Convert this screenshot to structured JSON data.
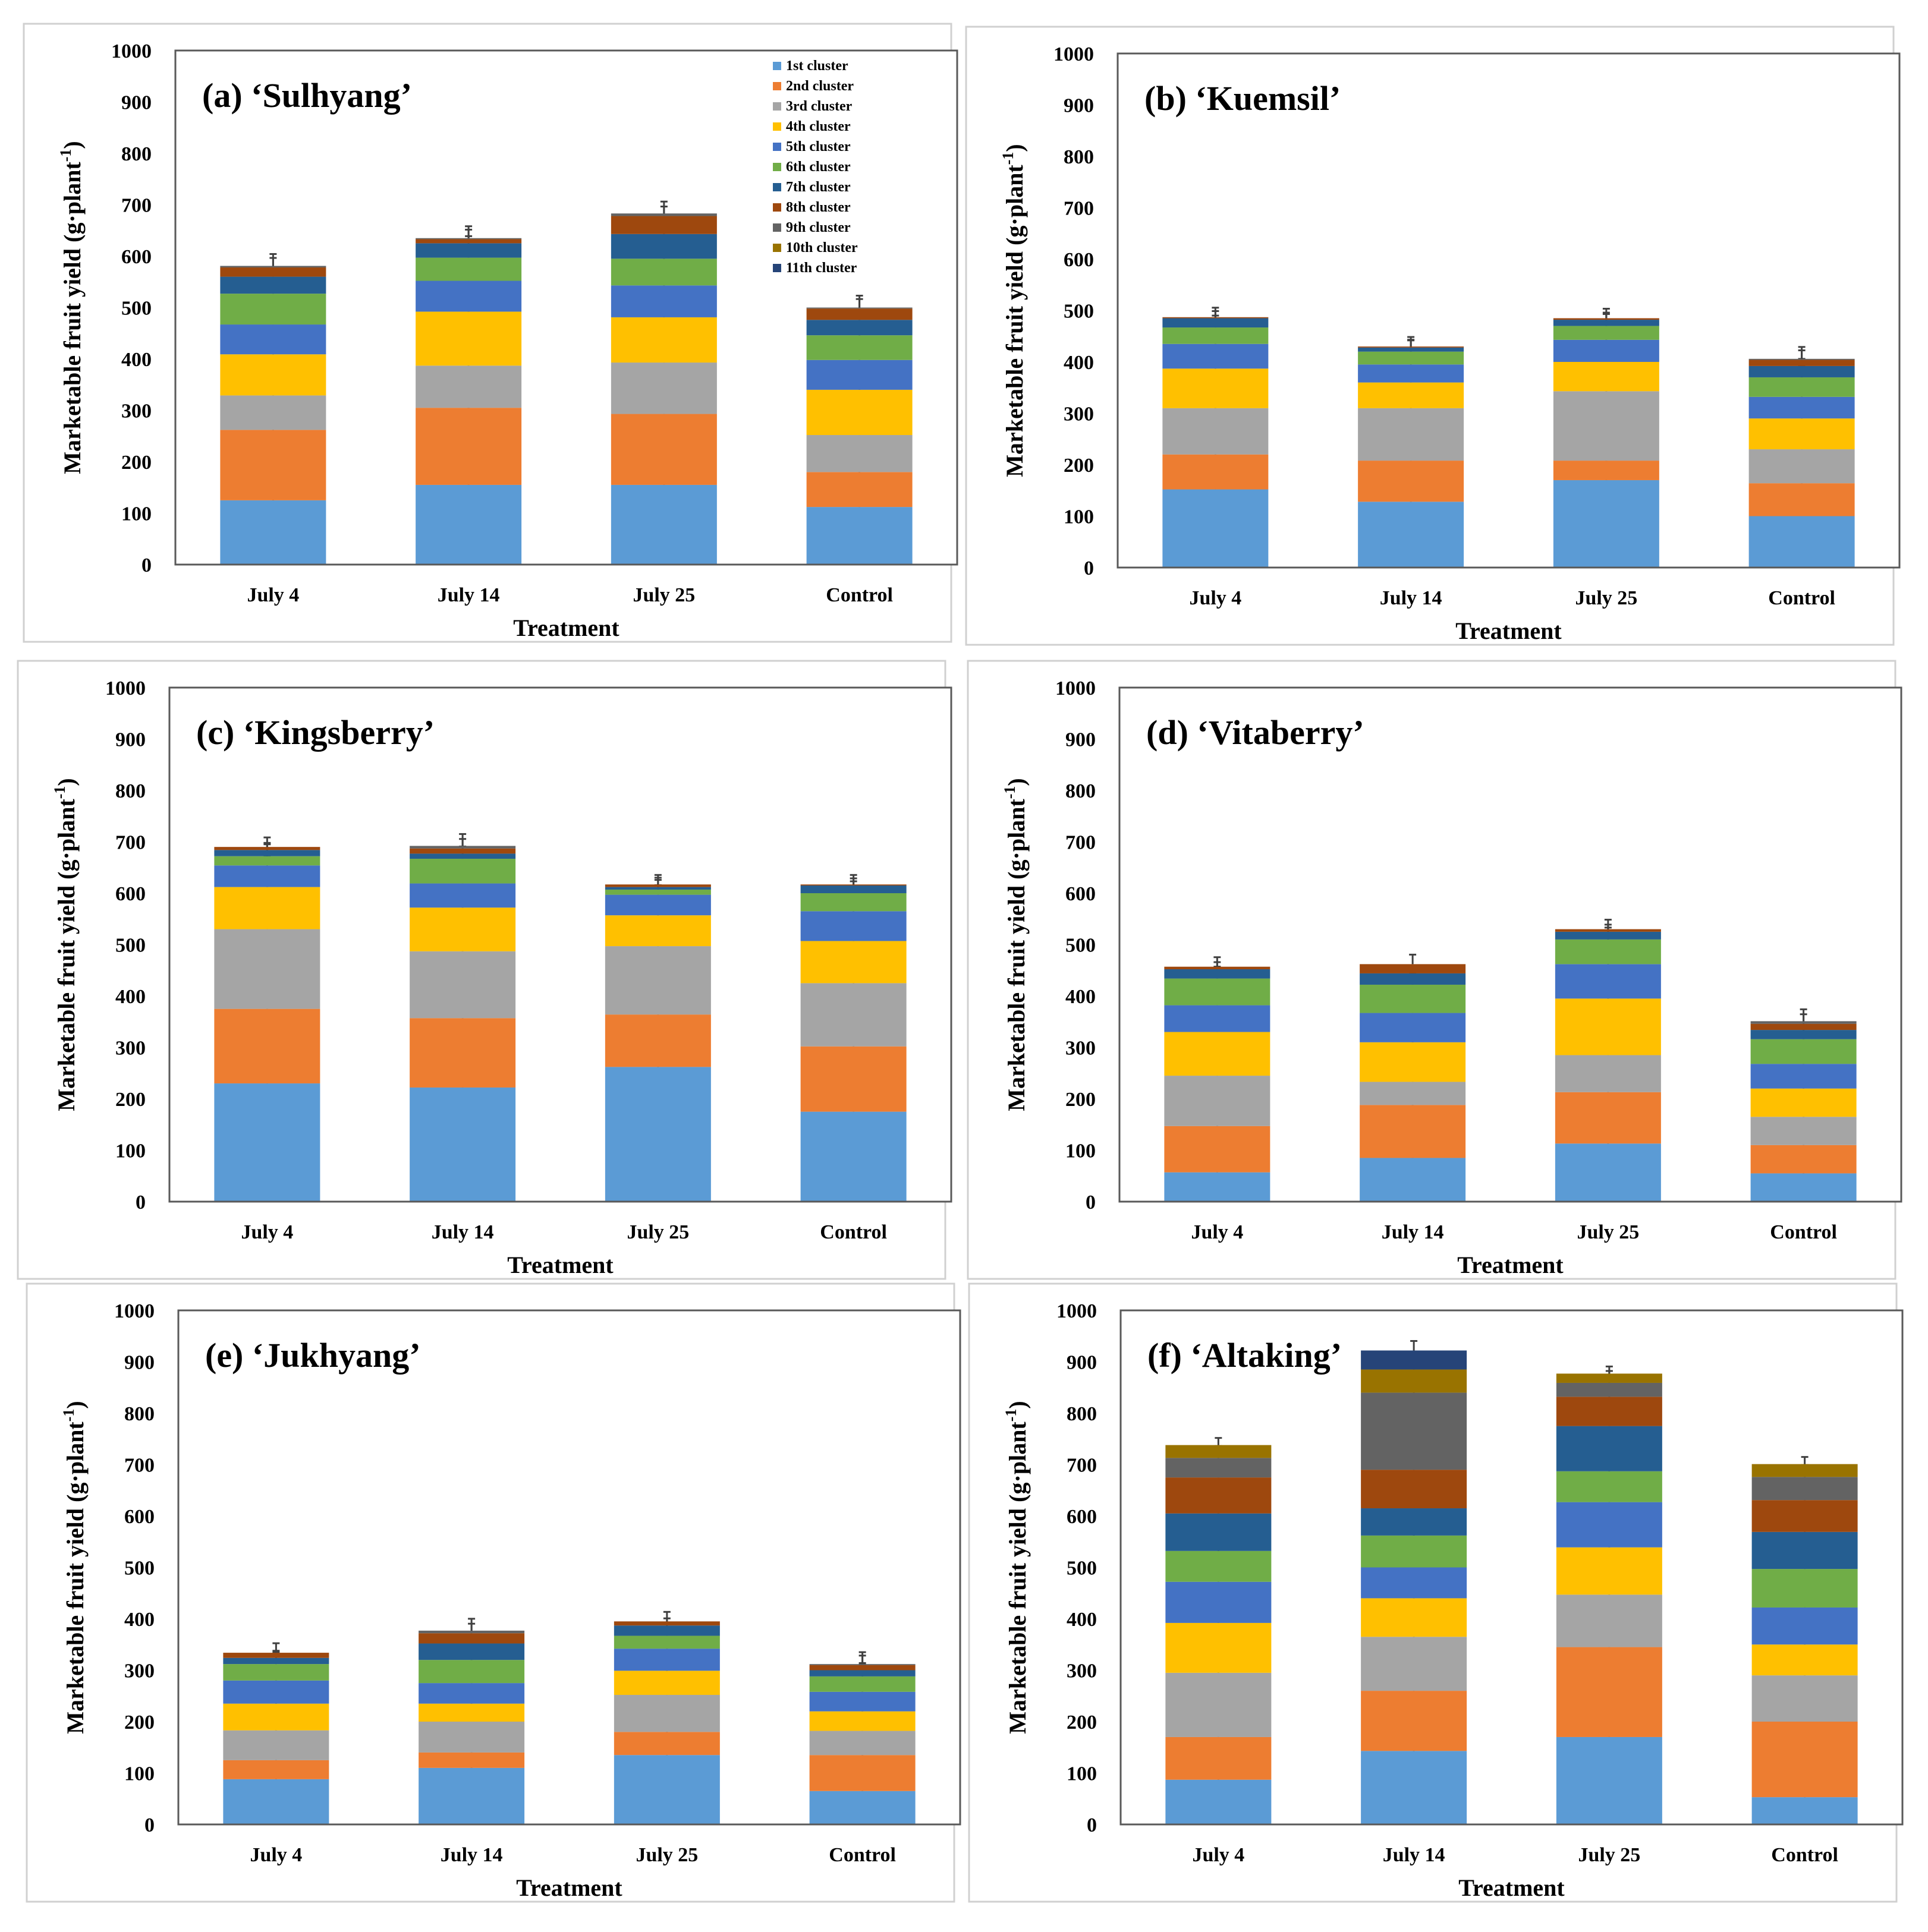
{
  "chart_data": {
    "type": "bar",
    "stacked": true,
    "ylim": [
      0,
      1000
    ],
    "yticks": [
      0,
      100,
      200,
      300,
      400,
      500,
      600,
      700,
      800,
      900,
      1000
    ],
    "ylabel_main": "Marketable fruit yield (g·plant",
    "ylabel_sup": "-1",
    "ylabel_end": ")",
    "xlabel": "Treatment",
    "categories": [
      "July 4",
      "July 14",
      "July 25",
      "Control"
    ],
    "legend": [
      "1st cluster",
      "2nd cluster",
      "3rd cluster",
      "4th cluster",
      "5th cluster",
      "6th cluster",
      "7th cluster",
      "8th cluster",
      "9th cluster",
      "10th cluster",
      "11th cluster"
    ],
    "colors": [
      "#5b9bd5",
      "#ed7d31",
      "#a5a5a5",
      "#ffc000",
      "#4472c4",
      "#70ad47",
      "#255e91",
      "#9e480e",
      "#636363",
      "#997300",
      "#264478"
    ],
    "panels": [
      {
        "title": "(a) ‘Sulhyang’",
        "stacks": [
          [
            125,
            137,
            67,
            80,
            58,
            60,
            33,
            18,
            3
          ],
          [
            155,
            150,
            82,
            105,
            60,
            45,
            28,
            8,
            2
          ],
          [
            155,
            138,
            100,
            88,
            62,
            52,
            48,
            35,
            5
          ],
          [
            112,
            68,
            72,
            88,
            58,
            48,
            30,
            22,
            2
          ]
        ]
      },
      {
        "title": "(b) ‘Kuemsil’",
        "stacks": [
          [
            152,
            68,
            90,
            77,
            48,
            32,
            18,
            2
          ],
          [
            128,
            80,
            102,
            50,
            35,
            25,
            8,
            2
          ],
          [
            170,
            38,
            135,
            57,
            43,
            27,
            12,
            3
          ],
          [
            100,
            64,
            66,
            60,
            42,
            38,
            22,
            12,
            2
          ]
        ]
      },
      {
        "title": "(c) ‘Kingsberry’",
        "stacks": [
          [
            230,
            145,
            155,
            82,
            42,
            18,
            12,
            6
          ],
          [
            222,
            135,
            130,
            85,
            47,
            48,
            10,
            10,
            5
          ],
          [
            262,
            102,
            133,
            60,
            40,
            10,
            5,
            5
          ],
          [
            175,
            127,
            123,
            82,
            58,
            35,
            15,
            2
          ]
        ]
      },
      {
        "title": "(d) ‘Vitaberry’",
        "stacks": [
          [
            57,
            90,
            98,
            85,
            52,
            52,
            18,
            5
          ],
          [
            85,
            103,
            45,
            77,
            57,
            55,
            22,
            18
          ],
          [
            113,
            100,
            72,
            110,
            67,
            48,
            15,
            5
          ],
          [
            55,
            55,
            55,
            55,
            48,
            48,
            18,
            12,
            5
          ]
        ]
      },
      {
        "title": "(e) ‘Jukhyang’",
        "stacks": [
          [
            88,
            37,
            58,
            52,
            45,
            32,
            12,
            10
          ],
          [
            110,
            30,
            60,
            35,
            40,
            45,
            32,
            20,
            5
          ],
          [
            135,
            45,
            72,
            47,
            43,
            25,
            20,
            8
          ],
          [
            65,
            70,
            47,
            38,
            38,
            30,
            12,
            10,
            2
          ]
        ]
      },
      {
        "title": "(f) ‘Altaking’",
        "stacks": [
          [
            87,
            83,
            125,
            97,
            80,
            60,
            73,
            70,
            38,
            25
          ],
          [
            143,
            117,
            105,
            75,
            60,
            62,
            53,
            75,
            150,
            45,
            37
          ],
          [
            170,
            175,
            102,
            92,
            88,
            60,
            88,
            57,
            27,
            18
          ],
          [
            53,
            147,
            90,
            60,
            72,
            75,
            72,
            62,
            45,
            25
          ]
        ]
      }
    ]
  }
}
